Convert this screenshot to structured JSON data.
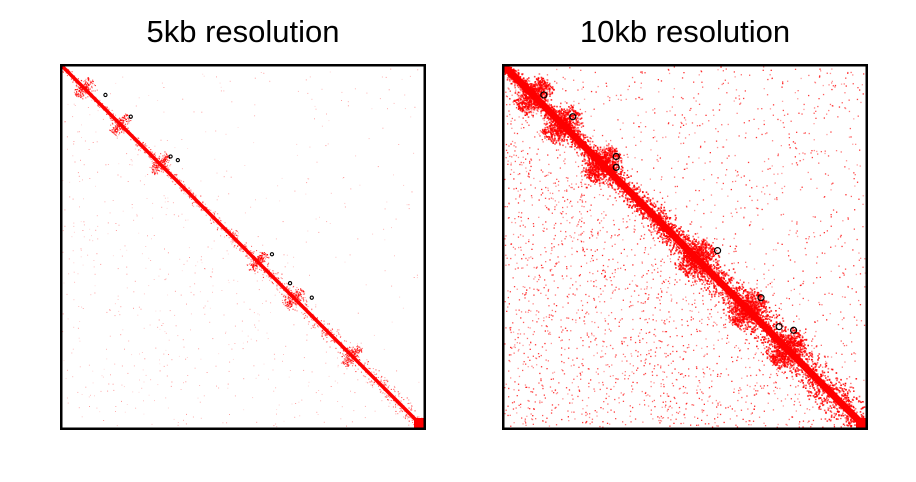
{
  "chart_data": [
    {
      "type": "heatmap",
      "title": "5kb resolution",
      "xlabel": "",
      "ylabel": "",
      "ticks": "none",
      "colormap": {
        "low": "#ffffff",
        "high": "#ff0000"
      },
      "loop_marker_color": "#000000",
      "loops": [
        [
          0.08,
          0.12
        ],
        [
          0.14,
          0.19
        ],
        [
          0.25,
          0.3
        ],
        [
          0.26,
          0.32
        ],
        [
          0.52,
          0.58
        ],
        [
          0.6,
          0.63
        ],
        [
          0.64,
          0.69
        ]
      ],
      "tad_centers": [
        0.06,
        0.16,
        0.27,
        0.54,
        0.64,
        0.8
      ],
      "contact_density": "sparse"
    },
    {
      "type": "heatmap",
      "title": "10kb resolution",
      "xlabel": "",
      "ylabel": "",
      "ticks": "none",
      "colormap": {
        "low": "#ffffff",
        "high": "#ff0000"
      },
      "loop_marker_color": "#000000",
      "loops": [
        [
          0.08,
          0.11
        ],
        [
          0.14,
          0.19
        ],
        [
          0.25,
          0.31
        ],
        [
          0.28,
          0.31
        ],
        [
          0.51,
          0.59
        ],
        [
          0.64,
          0.71
        ],
        [
          0.72,
          0.76
        ],
        [
          0.73,
          0.8
        ]
      ],
      "tad_centers": [
        0.08,
        0.16,
        0.27,
        0.53,
        0.67,
        0.78
      ],
      "contact_density": "dense"
    }
  ]
}
